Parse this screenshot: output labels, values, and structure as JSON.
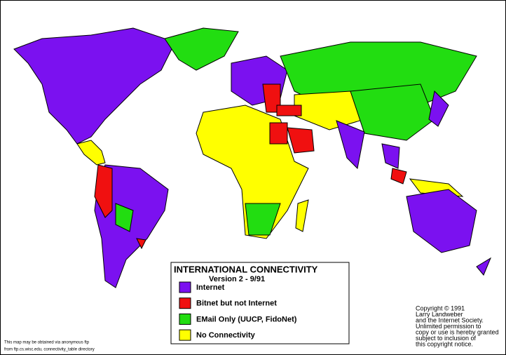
{
  "legend": {
    "title": "INTERNATIONAL CONNECTIVITY",
    "version": "Version 2  - 9/91",
    "items": [
      {
        "label": "Internet",
        "color": "#7b11f0"
      },
      {
        "label": "Bitnet but not Internet",
        "color": "#f01010"
      },
      {
        "label": "EMail Only (UUCP, FidoNet)",
        "color": "#22dd11"
      },
      {
        "label": "No Connectivity",
        "color": "#ffff00"
      }
    ]
  },
  "copyright": [
    "Copyright © 1991",
    "Larry Landweber",
    "and the Internet Society.",
    "Unlimited permission to",
    "copy or use is hereby granted",
    "subject to inclusion of",
    "this copyright notice."
  ],
  "source_note": [
    "This map may be obtained via anonymous ftp",
    "from ftp.cs.wisc.edu, connectivity_table directory"
  ]
}
